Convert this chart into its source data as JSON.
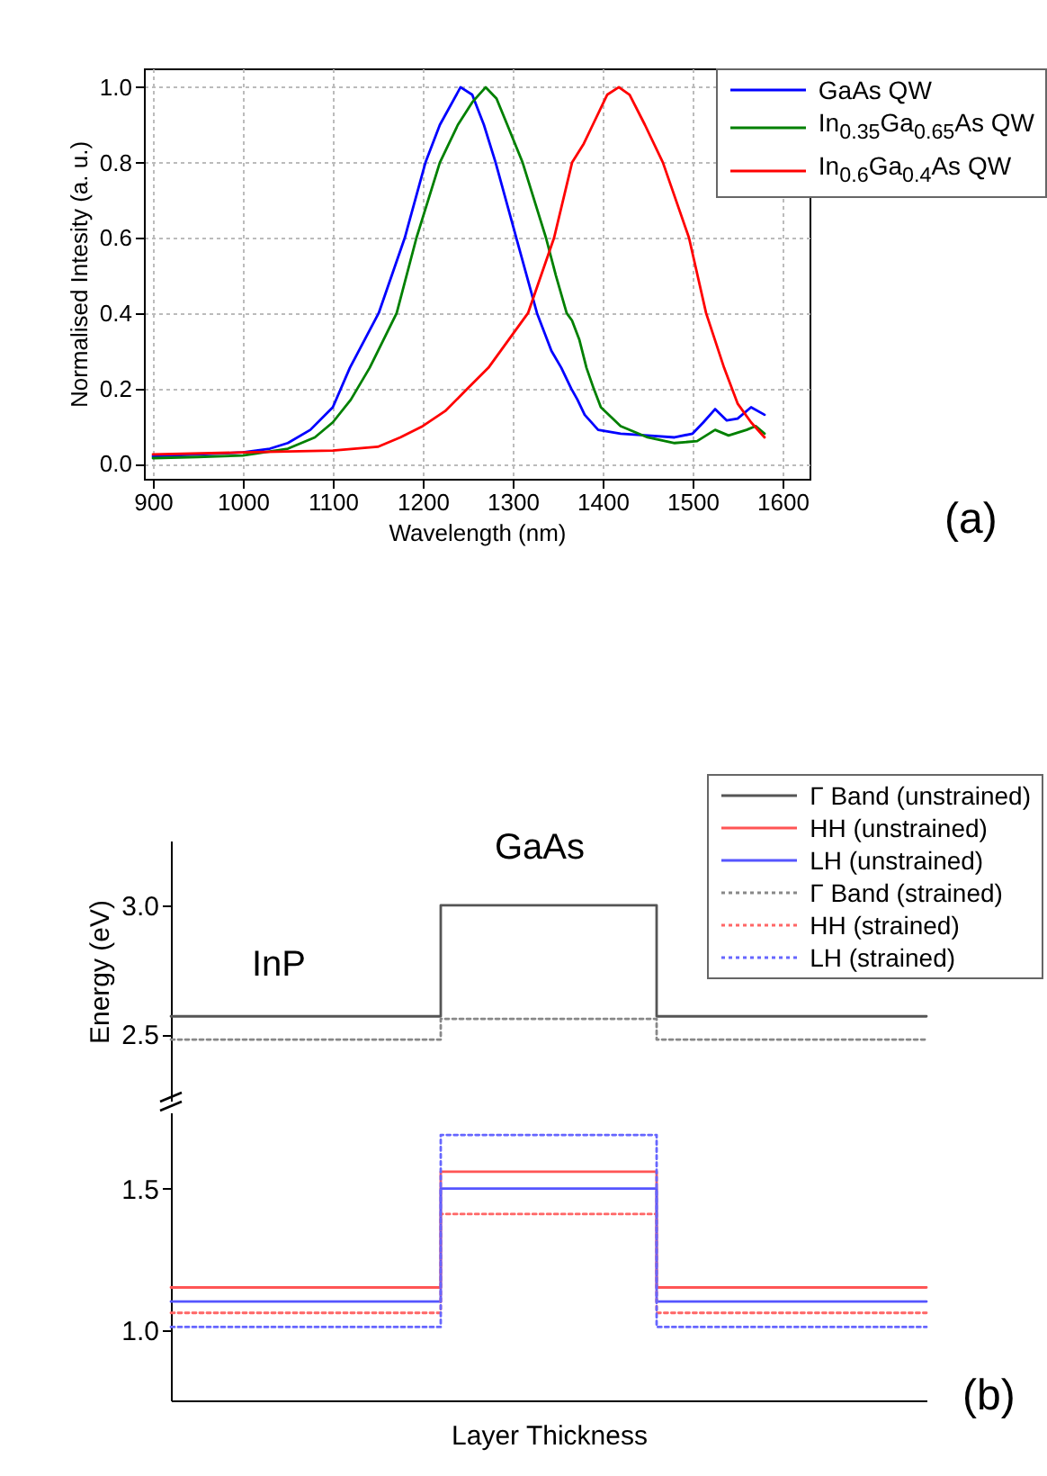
{
  "chart_data": [
    {
      "type": "line",
      "xlabel": "Wavelength (nm)",
      "ylabel": "Normalised Intesity (a. u.)",
      "xlim": [
        890,
        1630
      ],
      "ylim": [
        -0.04,
        1.05
      ],
      "xticks": [
        900,
        1000,
        1100,
        1200,
        1300,
        1400,
        1500,
        1600
      ],
      "yticks": [
        {
          "value": 0,
          "label": "0.0"
        },
        {
          "value": 0.2,
          "label": "0.2"
        },
        {
          "value": 0.4,
          "label": "0.4"
        },
        {
          "value": 0.6,
          "label": "0.6"
        },
        {
          "value": 0.8,
          "label": "0.8"
        },
        {
          "value": 1,
          "label": "1.0"
        }
      ],
      "grid": true,
      "legend": "top right",
      "annotations": [
        "(a)"
      ],
      "series": [
        {
          "name": "GaAs QW",
          "color": "#0000ff",
          "x": [
            900,
            950,
            1000,
            1030,
            1050,
            1075,
            1100,
            1119,
            1151,
            1180,
            1203,
            1219,
            1242,
            1255,
            1268,
            1281,
            1304,
            1327,
            1343,
            1354,
            1365,
            1372,
            1380,
            1395,
            1420,
            1450,
            1480,
            1500,
            1512,
            1525,
            1538,
            1550,
            1565,
            1580
          ],
          "values": [
            0.02,
            0.025,
            0.03,
            0.04,
            0.055,
            0.09,
            0.15,
            0.255,
            0.4,
            0.6,
            0.8,
            0.9,
            1.0,
            0.98,
            0.9,
            0.8,
            0.6,
            0.4,
            0.3,
            0.255,
            0.2,
            0.17,
            0.13,
            0.09,
            0.08,
            0.075,
            0.07,
            0.08,
            0.11,
            0.145,
            0.115,
            0.12,
            0.15,
            0.13
          ]
        },
        {
          "name": "In$_{0.35}$Ga$_{0.65}$As QW",
          "color": "#008000",
          "x": [
            900,
            950,
            1000,
            1050,
            1080,
            1100,
            1120,
            1141,
            1171,
            1193,
            1219,
            1239,
            1255,
            1270,
            1282,
            1294,
            1311,
            1337,
            1348,
            1360,
            1366,
            1374,
            1382,
            1390,
            1398,
            1420,
            1450,
            1480,
            1505,
            1525,
            1540,
            1560,
            1570,
            1580
          ],
          "values": [
            0.015,
            0.018,
            0.022,
            0.04,
            0.07,
            0.11,
            0.17,
            0.255,
            0.4,
            0.6,
            0.8,
            0.9,
            0.96,
            1.0,
            0.97,
            0.9,
            0.8,
            0.6,
            0.5,
            0.4,
            0.38,
            0.33,
            0.255,
            0.2,
            0.15,
            0.1,
            0.07,
            0.055,
            0.06,
            0.09,
            0.075,
            0.09,
            0.1,
            0.08
          ]
        },
        {
          "name": "In$_{0.6}$Ga$_{0.4}$As QW",
          "color": "#ff0000",
          "x": [
            900,
            1000,
            1100,
            1150,
            1175,
            1200,
            1225,
            1250,
            1273,
            1317,
            1346,
            1366,
            1379,
            1389,
            1405,
            1418,
            1430,
            1447,
            1467,
            1496,
            1515,
            1535,
            1550,
            1565,
            1580
          ],
          "values": [
            0.025,
            0.03,
            0.035,
            0.045,
            0.07,
            0.1,
            0.14,
            0.2,
            0.255,
            0.4,
            0.6,
            0.8,
            0.85,
            0.9,
            0.98,
            1.0,
            0.98,
            0.9,
            0.8,
            0.6,
            0.4,
            0.255,
            0.16,
            0.11,
            0.07
          ]
        }
      ]
    },
    {
      "type": "step",
      "ylabel": "Energy (eV)",
      "categories": [
        null,
        null,
        null,
        null,
        null,
        null,
        null,
        null
      ],
      "ylim": [
        2.24,
        3.25
      ],
      "yticks": [
        {
          "value": 2.5,
          "label": "2.5"
        },
        {
          "value": 3,
          "label": "3.0"
        }
      ],
      "tick_labels": "y",
      "legend": "top right",
      "annotations": [
        "InP",
        "GaAs"
      ],
      "series": [
        {
          "name": "Γ Band (unstrained)",
          "color": "#555555",
          "line_style": "solid",
          "values": [
            2.57,
            2.57,
            2.57,
            3.0,
            3.0,
            2.57,
            2.57,
            2.57
          ]
        },
        {
          "name": "HH (unstrained)",
          "color": "#ff5555",
          "line_style": "solid",
          "values": [
            null,
            null,
            null,
            null,
            null,
            null,
            null,
            null
          ]
        },
        {
          "name": "LH (unstrained)",
          "color": "#5555ff",
          "line_style": "solid",
          "values": [
            null,
            null,
            null,
            null,
            null,
            null,
            null,
            null
          ]
        },
        {
          "name": "Γ Band (strained)",
          "color": "#888888",
          "line_style": "dotted",
          "values": [
            2.48,
            2.48,
            2.48,
            2.56,
            2.56,
            2.48,
            2.48,
            2.48
          ]
        },
        {
          "name": "HH (strained)",
          "color": "#ff6666",
          "line_style": "dotted",
          "values": [
            null,
            null,
            null,
            null,
            null,
            null,
            null,
            null
          ]
        },
        {
          "name": "LH (strained)",
          "color": "#6666ff",
          "line_style": "dotted",
          "values": [
            null,
            null,
            null,
            null,
            null,
            null,
            null,
            null
          ]
        }
      ]
    },
    {
      "type": "step",
      "xlabel": "Layer Thickness",
      "categories": [
        null,
        null,
        null,
        null,
        null,
        null,
        null,
        null
      ],
      "ylim": [
        0.75,
        1.77
      ],
      "yticks": [
        {
          "value": 1,
          "label": "1.0"
        },
        {
          "value": 1.5,
          "label": "1.5"
        }
      ],
      "tick_labels": "y",
      "annotations": [
        "(b)"
      ],
      "series": [
        {
          "color": "#ff5555",
          "line_style": "solid",
          "values": [
            1.15,
            1.15,
            1.15,
            1.56,
            1.56,
            1.15,
            1.15,
            1.15
          ]
        },
        {
          "color": "#5555ff",
          "line_style": "solid",
          "values": [
            1.1,
            1.1,
            1.1,
            1.5,
            1.5,
            1.1,
            1.1,
            1.1
          ]
        },
        {
          "color": "#ff6666",
          "line_style": "dotted",
          "values": [
            1.06,
            1.06,
            1.06,
            1.41,
            1.41,
            1.06,
            1.06,
            1.06
          ]
        },
        {
          "color": "#6666ff",
          "line_style": "dotted",
          "values": [
            1.01,
            1.01,
            1.01,
            1.69,
            1.69,
            1.01,
            1.01,
            1.01
          ]
        }
      ]
    }
  ]
}
